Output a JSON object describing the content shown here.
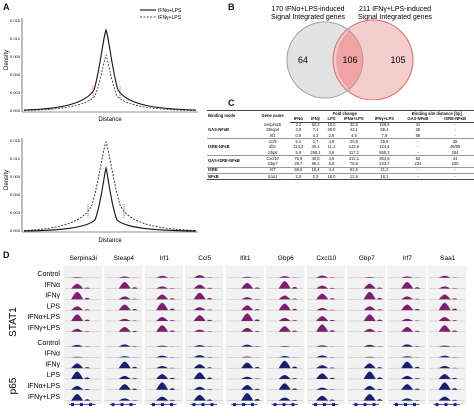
{
  "panels": {
    "a": "A",
    "b": "B",
    "c": "C",
    "d": "D"
  },
  "panel_a": {
    "density_top": {
      "ylabel": "Density",
      "xlabel": "Distance",
      "yticks": [
        "0.015",
        "0.012",
        "0.009",
        "0.006",
        "0.003",
        "0.000"
      ],
      "legend": [
        {
          "name": "IFNα+LPS",
          "style": "solid"
        },
        {
          "name": "IFNγ+LPS",
          "style": "dashed"
        }
      ]
    },
    "density_bottom": {
      "ylabel": "Density",
      "xlabel": "Distance",
      "yticks": [
        "0.015",
        "0.012",
        "0.009",
        "0.006",
        "0.003",
        "0.000"
      ]
    }
  },
  "panel_b": {
    "left_title_line1": "170 IFNα+LPS-induced",
    "left_title_line2": "Signal Integrated genes",
    "right_title_line1": "211 IFNγ+LPS-induced",
    "right_title_line2": "Signal Integrated genes",
    "left_only": "64",
    "overlap": "106",
    "right_only": "105",
    "colors": {
      "left": "#e2e2e2",
      "right": "#f4c4c4",
      "overlap": "#f0a3a3",
      "right_edge": "#d96a6a"
    }
  },
  "panel_c": {
    "header": {
      "binding_mode": "Binding mode",
      "gene_name": "Gene name",
      "fold_change": "Fold change",
      "binding_distance": "Binding site distance [bp]",
      "cols": [
        "IFNα",
        "IFNγ",
        "LPS",
        "IFNα+LPS",
        "IFNγ+LPS",
        "GAS-NFκB",
        "ISRE-NFκB"
      ]
    },
    "groups": [
      {
        "mode": "GAS-NFκB",
        "rows": [
          {
            "gene": "Serpina3i",
            "vals": [
              "2,3",
              "62,3",
              "19,0",
              "32,6",
              "156,5",
              "41",
              "-"
            ]
          },
          {
            "gene": "Steap4",
            "vals": [
              "4,9",
              "7,4",
              "36,0",
              "43,1",
              "86,4",
              "25",
              "-"
            ]
          },
          {
            "gene": "Irf1",
            "vals": [
              "0,9",
              "4,3",
              "2,6",
              "4,9",
              "7,9",
              "58",
              "-"
            ]
          }
        ]
      },
      {
        "mode": "ISRE-NFκB",
        "rows": [
          {
            "gene": "Ccl5",
            "vals": [
              "5,1",
              "1,7",
              "4,8",
              "20,9",
              "25,9",
              "-",
              "38"
            ]
          },
          {
            "gene": "Ifit1",
            "vals": [
              "113,3",
              "40,1",
              "11,1",
              "142,6",
              "124,6",
              "-",
              "46/80"
            ]
          },
          {
            "gene": "Gbp6",
            "vals": [
              "5,9",
              "268,1",
              "3,5",
              "117,2",
              "555,3",
              "-",
              "264"
            ]
          }
        ]
      },
      {
        "mode": "GAS-ISRE-NFκB",
        "rows": [
          {
            "gene": "Cxcl10",
            "vals": [
              "75,9",
              "49,8",
              "4,6",
              "312,1",
              "364,9",
              "52",
              "44"
            ]
          },
          {
            "gene": "Gbp7",
            "vals": [
              "29,7",
              "85,2",
              "5,8",
              "78,6",
              "243,7",
              "234",
              "200"
            ]
          }
        ]
      },
      {
        "mode": "ISRE",
        "rows": [
          {
            "gene": "Irf7",
            "vals": [
              "58,6",
              "15,4",
              "4,4",
              "62,5",
              "31,2",
              "-",
              "-"
            ]
          }
        ]
      },
      {
        "mode": "NFκB",
        "rows": [
          {
            "gene": "Saa1",
            "vals": [
              "2,0",
              "2,3",
              "18,0",
              "12,6",
              "18,1",
              "-",
              "-"
            ]
          }
        ]
      }
    ]
  },
  "panel_d": {
    "genes": [
      "Serpina3i",
      "Steap4",
      "Irf1",
      "Ccl5",
      "Ifit1",
      "Gbp6",
      "Cxcl10",
      "Gbp7",
      "Irf7",
      "Saa1"
    ],
    "stat1_label": "STAT1",
    "p65_label": "p65",
    "stat1_tracks": [
      "Control",
      "IFNα",
      "IFNγ",
      "LPS",
      "IFNα+LPS",
      "IFNγ+LPS"
    ],
    "p65_tracks": [
      "Control",
      "IFNα",
      "IFNγ",
      "LPS",
      "IFNα+LPS",
      "IFNγ+LPS"
    ],
    "colors": {
      "stat1": "#7b1f6e",
      "p65": "#1a1f6b"
    }
  }
}
